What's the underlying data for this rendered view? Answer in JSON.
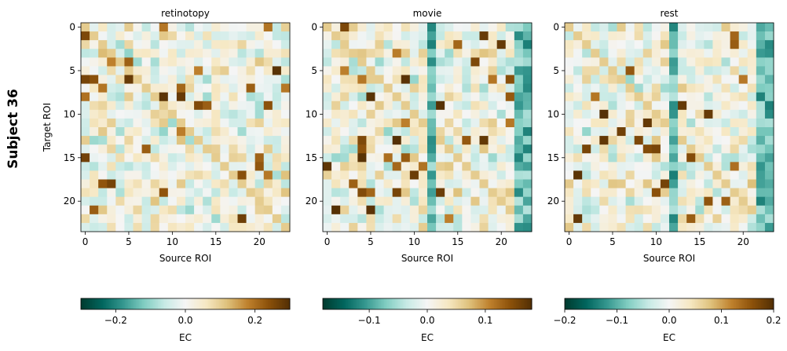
{
  "figure": {
    "row_label": "Subject 36"
  },
  "colors": {
    "cmap_stops": [
      "#003c30",
      "#01665e",
      "#35978f",
      "#80cdc1",
      "#c7eae5",
      "#f5f5f5",
      "#f6e8c3",
      "#dfc27d",
      "#bf812d",
      "#8c510a",
      "#543005"
    ]
  },
  "chart_data": [
    {
      "type": "heatmap",
      "title": "retinotopy",
      "xlabel": "Source ROI",
      "ylabel": "Target ROI",
      "xticks": [
        0,
        5,
        10,
        15,
        20
      ],
      "yticks": [
        0,
        5,
        10,
        15,
        20
      ],
      "n_rois": 24,
      "vlim": [
        -0.3,
        0.3
      ],
      "colorbar": {
        "label": "EC",
        "ticks": [
          -0.2,
          0.0,
          0.2
        ],
        "tick_labels": [
          "−0.2",
          "0.0",
          "0.2"
        ]
      },
      "seed": 36
    },
    {
      "type": "heatmap",
      "title": "movie",
      "xlabel": "Source ROI",
      "ylabel": "",
      "xticks": [
        0,
        5,
        10,
        15,
        20
      ],
      "yticks": [
        0,
        5,
        10,
        15,
        20
      ],
      "n_rois": 24,
      "vlim": [
        -0.18,
        0.18
      ],
      "colorbar": {
        "label": "EC",
        "ticks": [
          -0.1,
          0.0,
          0.1
        ],
        "tick_labels": [
          "−0.1",
          "0.0",
          "0.1"
        ]
      },
      "seed": 136
    },
    {
      "type": "heatmap",
      "title": "rest",
      "xlabel": "Source ROI",
      "ylabel": "",
      "xticks": [
        0,
        5,
        10,
        15,
        20
      ],
      "yticks": [
        0,
        5,
        10,
        15,
        20
      ],
      "n_rois": 24,
      "vlim": [
        -0.2,
        0.2
      ],
      "colorbar": {
        "label": "EC",
        "ticks": [
          -0.2,
          -0.1,
          0.0,
          0.1,
          0.2
        ],
        "tick_labels": [
          "−0.2",
          "−0.1",
          "0.0",
          "0.1",
          "0.2"
        ]
      },
      "seed": 236
    }
  ]
}
